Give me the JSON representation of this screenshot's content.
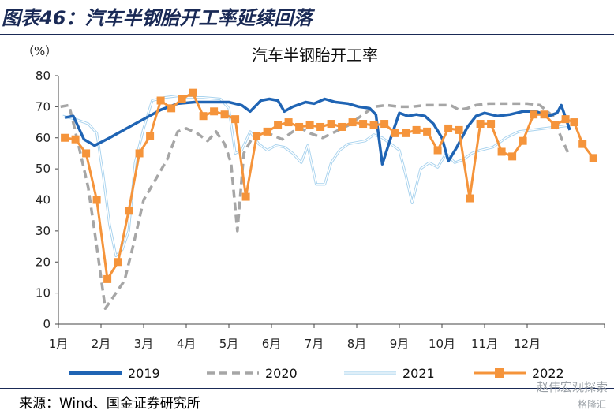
{
  "figure_title": "图表46：汽车半钢胎开工率延续回落",
  "source": "来源：Wind、国金证券研究所",
  "watermark": "赵伟宏观探索",
  "watermark2": "格隆汇",
  "chart_data": {
    "type": "line",
    "title": "汽车半钢胎开工率",
    "ylabel": "（%）",
    "xlabel": "",
    "ylim": [
      0,
      80
    ],
    "yticks": [
      0,
      10,
      20,
      30,
      40,
      50,
      60,
      70,
      80
    ],
    "xlim": [
      1,
      13
    ],
    "xticks": [
      "1月",
      "2月",
      "3月",
      "4月",
      "5月",
      "6月",
      "7月",
      "8月",
      "9月",
      "10月",
      "11月",
      "12月"
    ],
    "legend_position": "bottom",
    "series": [
      {
        "name": "2019",
        "color": "#1f64b4",
        "style": "solid-thick",
        "points": [
          [
            1.15,
            66.5
          ],
          [
            1.35,
            67.0
          ],
          [
            1.6,
            59.5
          ],
          [
            1.85,
            57.5
          ],
          [
            2.2,
            60.0
          ],
          [
            2.6,
            63.0
          ],
          [
            3.0,
            66.0
          ],
          [
            3.4,
            69.0
          ],
          [
            3.8,
            71.0
          ],
          [
            4.2,
            71.5
          ],
          [
            4.6,
            71.5
          ],
          [
            5.0,
            71.5
          ],
          [
            5.3,
            70.5
          ],
          [
            5.5,
            68.5
          ],
          [
            5.75,
            72.0
          ],
          [
            5.95,
            72.5
          ],
          [
            6.15,
            72.0
          ],
          [
            6.3,
            68.5
          ],
          [
            6.5,
            70.0
          ],
          [
            6.8,
            71.5
          ],
          [
            7.0,
            71.0
          ],
          [
            7.25,
            72.5
          ],
          [
            7.5,
            71.5
          ],
          [
            7.8,
            71.0
          ],
          [
            8.05,
            70.0
          ],
          [
            8.3,
            69.5
          ],
          [
            8.45,
            67.5
          ],
          [
            8.6,
            51.5
          ],
          [
            8.8,
            60.0
          ],
          [
            9.0,
            68.0
          ],
          [
            9.2,
            67.0
          ],
          [
            9.4,
            67.5
          ],
          [
            9.6,
            67.0
          ],
          [
            9.8,
            64.5
          ],
          [
            10.0,
            60.0
          ],
          [
            10.15,
            52.5
          ],
          [
            10.35,
            57.0
          ],
          [
            10.6,
            63.5
          ],
          [
            10.8,
            67.0
          ],
          [
            11.0,
            68.0
          ],
          [
            11.3,
            67.0
          ],
          [
            11.6,
            67.5
          ],
          [
            11.9,
            68.5
          ],
          [
            12.2,
            68.5
          ],
          [
            12.5,
            67.0
          ],
          [
            12.7,
            68.0
          ],
          [
            12.8,
            70.5
          ],
          [
            13.0,
            62.5
          ]
        ]
      },
      {
        "name": "2020",
        "color": "#a6a6a6",
        "style": "dashed-thick",
        "points": [
          [
            1.05,
            70.0
          ],
          [
            1.25,
            70.5
          ],
          [
            1.45,
            59.0
          ],
          [
            1.7,
            44.0
          ],
          [
            1.9,
            25.0
          ],
          [
            2.1,
            5.0
          ],
          [
            2.35,
            10.0
          ],
          [
            2.55,
            14.0
          ],
          [
            2.75,
            25.0
          ],
          [
            3.0,
            40.0
          ],
          [
            3.3,
            47.0
          ],
          [
            3.55,
            53.0
          ],
          [
            3.8,
            62.0
          ],
          [
            4.0,
            63.0
          ],
          [
            4.25,
            61.5
          ],
          [
            4.5,
            59.0
          ],
          [
            4.7,
            62.0
          ],
          [
            4.9,
            58.0
          ],
          [
            5.05,
            52.0
          ],
          [
            5.2,
            30.0
          ],
          [
            5.35,
            55.0
          ],
          [
            5.55,
            60.0
          ],
          [
            5.8,
            62.0
          ],
          [
            6.0,
            61.0
          ],
          [
            6.25,
            59.5
          ],
          [
            6.5,
            62.0
          ],
          [
            6.7,
            63.0
          ],
          [
            6.9,
            61.5
          ],
          [
            7.2,
            60.0
          ],
          [
            7.5,
            62.0
          ],
          [
            7.8,
            64.0
          ],
          [
            8.0,
            66.0
          ],
          [
            8.2,
            68.0
          ],
          [
            8.4,
            70.0
          ],
          [
            8.7,
            70.5
          ],
          [
            9.0,
            70.0
          ],
          [
            9.3,
            70.0
          ],
          [
            9.6,
            70.5
          ],
          [
            9.9,
            70.5
          ],
          [
            10.2,
            70.5
          ],
          [
            10.4,
            69.0
          ],
          [
            10.6,
            69.5
          ],
          [
            10.8,
            70.5
          ],
          [
            11.1,
            71.0
          ],
          [
            11.4,
            71.0
          ],
          [
            11.7,
            71.0
          ],
          [
            12.0,
            71.0
          ],
          [
            12.3,
            70.5
          ],
          [
            12.6,
            67.0
          ],
          [
            12.8,
            60.0
          ],
          [
            13.0,
            54.0
          ]
        ]
      },
      {
        "name": "2021",
        "color": "#a9d3ee",
        "style": "double-thin",
        "points": [
          [
            1.1,
            67.0
          ],
          [
            1.4,
            66.0
          ],
          [
            1.7,
            64.5
          ],
          [
            1.9,
            61.5
          ],
          [
            2.05,
            48.0
          ],
          [
            2.2,
            32.0
          ],
          [
            2.35,
            22.0
          ],
          [
            2.5,
            24.0
          ],
          [
            2.65,
            30.0
          ],
          [
            2.8,
            52.0
          ],
          [
            3.0,
            63.0
          ],
          [
            3.2,
            72.0
          ],
          [
            3.5,
            73.0
          ],
          [
            3.8,
            73.5
          ],
          [
            4.0,
            73.0
          ],
          [
            4.4,
            73.0
          ],
          [
            4.8,
            72.5
          ],
          [
            5.0,
            69.5
          ],
          [
            5.15,
            55.0
          ],
          [
            5.3,
            56.0
          ],
          [
            5.5,
            62.0
          ],
          [
            5.7,
            58.0
          ],
          [
            5.9,
            56.0
          ],
          [
            6.1,
            57.5
          ],
          [
            6.3,
            57.0
          ],
          [
            6.5,
            55.0
          ],
          [
            6.7,
            52.0
          ],
          [
            6.85,
            57.5
          ],
          [
            7.05,
            45.0
          ],
          [
            7.25,
            45.0
          ],
          [
            7.4,
            52.0
          ],
          [
            7.6,
            56.0
          ],
          [
            7.8,
            58.0
          ],
          [
            8.0,
            58.5
          ],
          [
            8.2,
            59.0
          ],
          [
            8.4,
            61.0
          ],
          [
            8.6,
            60.0
          ],
          [
            8.8,
            58.0
          ],
          [
            9.0,
            56.0
          ],
          [
            9.15,
            48.0
          ],
          [
            9.3,
            39.0
          ],
          [
            9.5,
            50.0
          ],
          [
            9.7,
            52.0
          ],
          [
            9.9,
            50.5
          ],
          [
            10.1,
            55.0
          ],
          [
            10.3,
            52.0
          ],
          [
            10.5,
            53.0
          ],
          [
            10.7,
            55.0
          ],
          [
            10.9,
            56.0
          ],
          [
            11.2,
            57.0
          ],
          [
            11.5,
            60.0
          ],
          [
            11.8,
            62.0
          ],
          [
            12.1,
            62.5
          ],
          [
            12.4,
            63.0
          ],
          [
            12.7,
            63.5
          ],
          [
            13.0,
            64.0
          ]
        ]
      },
      {
        "name": "2022",
        "color": "#f5943b",
        "style": "solid-marker",
        "points": [
          [
            1.15,
            60.0
          ],
          [
            1.4,
            59.5
          ],
          [
            1.65,
            55.0
          ],
          [
            1.9,
            40.0
          ],
          [
            2.15,
            14.5
          ],
          [
            2.4,
            20.0
          ],
          [
            2.65,
            36.5
          ],
          [
            2.9,
            55.0
          ],
          [
            3.15,
            60.5
          ],
          [
            3.4,
            72.0
          ],
          [
            3.65,
            69.5
          ],
          [
            3.9,
            72.5
          ],
          [
            4.15,
            74.5
          ],
          [
            4.4,
            67.0
          ],
          [
            4.65,
            68.5
          ],
          [
            4.9,
            67.5
          ],
          [
            5.15,
            66.0
          ],
          [
            5.4,
            41.0
          ],
          [
            5.65,
            60.5
          ],
          [
            5.9,
            62.0
          ],
          [
            6.15,
            64.0
          ],
          [
            6.4,
            65.0
          ],
          [
            6.65,
            63.5
          ],
          [
            6.9,
            64.0
          ],
          [
            7.15,
            63.5
          ],
          [
            7.4,
            64.5
          ],
          [
            7.65,
            63.5
          ],
          [
            7.9,
            65.0
          ],
          [
            8.15,
            64.5
          ],
          [
            8.4,
            64.0
          ],
          [
            8.65,
            64.5
          ],
          [
            8.9,
            61.5
          ],
          [
            9.15,
            61.5
          ],
          [
            9.4,
            62.5
          ],
          [
            9.65,
            62.0
          ],
          [
            9.9,
            56.0
          ],
          [
            10.15,
            63.0
          ],
          [
            10.4,
            62.5
          ],
          [
            10.65,
            40.5
          ],
          [
            10.9,
            64.5
          ],
          [
            11.15,
            64.5
          ],
          [
            11.4,
            55.5
          ],
          [
            11.65,
            54.0
          ],
          [
            11.9,
            59.0
          ],
          [
            12.15,
            67.5
          ],
          [
            12.4,
            67.5
          ],
          [
            12.65,
            64.0
          ],
          [
            12.9,
            66.0
          ],
          [
            13.1,
            65.0
          ],
          [
            13.3,
            58.0
          ],
          [
            13.55,
            53.5
          ]
        ]
      }
    ]
  }
}
